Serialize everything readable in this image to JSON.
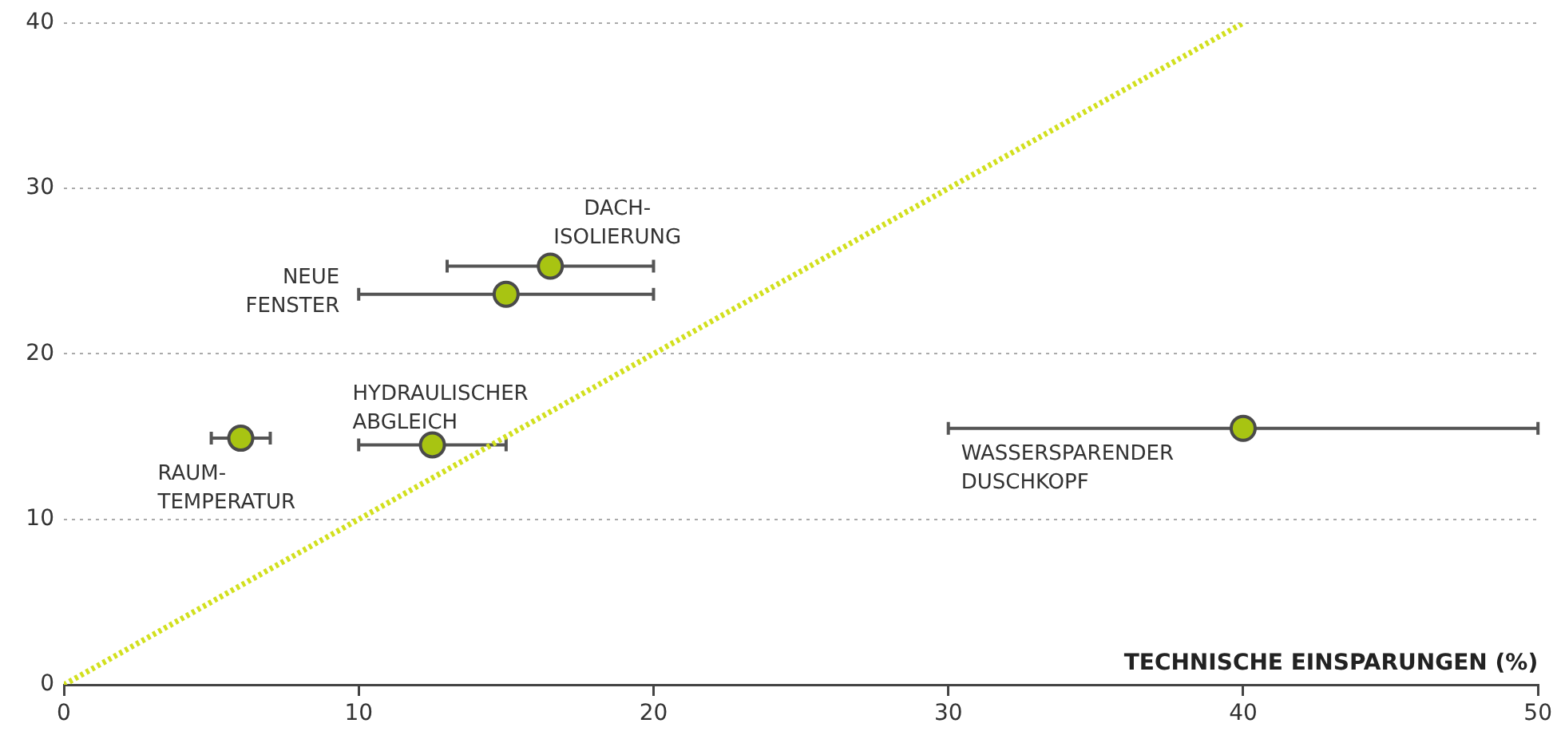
{
  "chart_data": {
    "type": "scatter",
    "xlabel": "TECHNISCHE EINSPARUNGEN (%)",
    "xlim": [
      0,
      50
    ],
    "xticks": [
      0,
      10,
      20,
      30,
      40,
      50
    ],
    "ylim": [
      0,
      40
    ],
    "yticks": [
      0,
      10,
      20,
      30,
      40
    ],
    "grid": "y",
    "marker": "circle",
    "series": [
      {
        "type": "line",
        "x": [
          0,
          40
        ],
        "values": [
          0,
          40
        ],
        "color": "#d2e01e",
        "line_style": "dotted",
        "marker": "none"
      },
      {
        "x": [
          16.5,
          15,
          12.5,
          6,
          40
        ],
        "values": [
          25.3,
          23.6,
          14.5,
          14.9,
          15.5
        ],
        "xerrors": [
          [
            13,
            20
          ],
          [
            10,
            20
          ],
          [
            10,
            15
          ],
          [
            5,
            7
          ],
          [
            30,
            50
          ]
        ],
        "color": "#a8c412"
      }
    ],
    "annotations": [
      {
        "text": "DACH-\nISOLIERUNG",
        "x": 16.5,
        "y": 25.3
      },
      {
        "text": "NEUE\nFENSTER",
        "x": 10,
        "y": 23.6
      },
      {
        "text": "HYDRAULISCHER\nABGLEICH",
        "x": 12.5,
        "y": 14.5
      },
      {
        "text": "RAUM-\nTEMPERATUR",
        "x": 6,
        "y": 14.9
      },
      {
        "text": "WASSERSPARENDER\nDUSCHKOPF",
        "x": 30,
        "y": 15.5
      }
    ]
  }
}
